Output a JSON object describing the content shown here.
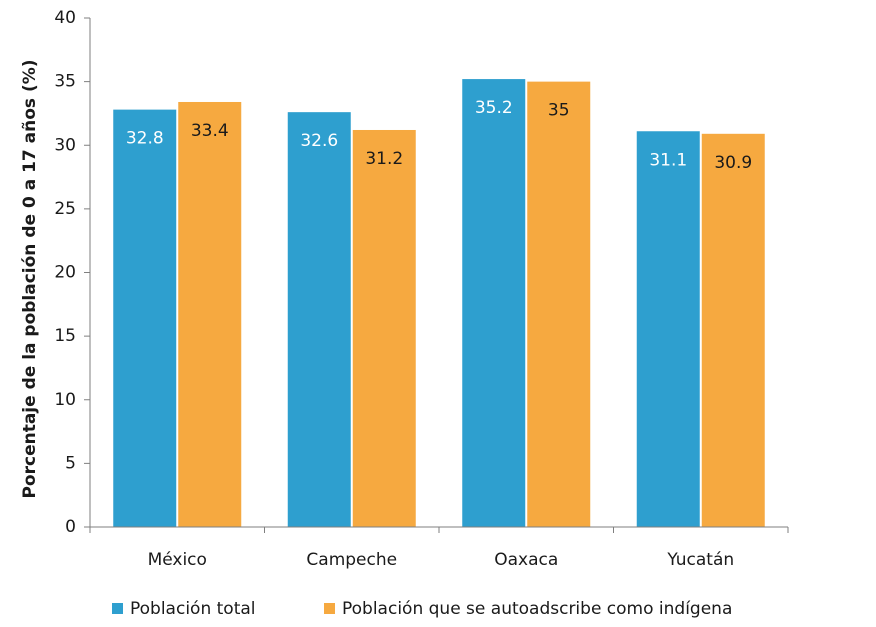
{
  "chart_data": {
    "type": "bar",
    "categories": [
      "México",
      "Campeche",
      "Oaxaca",
      "Yucatán"
    ],
    "series": [
      {
        "name": "Población total",
        "values": [
          32.8,
          32.6,
          35.2,
          31.1
        ],
        "labels": [
          "32.8",
          "32.6",
          "35.2",
          "31.1"
        ],
        "color": "#2E9FCF",
        "label_color": "#ffffff"
      },
      {
        "name": "Población que se autoadscribe como indígena",
        "values": [
          33.4,
          31.2,
          35,
          30.9
        ],
        "labels": [
          "33.4",
          "31.2",
          "35",
          "30.9"
        ],
        "color": "#F6A940",
        "label_color": "#1a1a1a"
      }
    ],
    "title": "",
    "xlabel": "",
    "ylabel": "Porcentaje  de la población de 0 a 17 años (%)",
    "ylim": [
      0,
      40
    ],
    "yticks": [
      0,
      5,
      10,
      15,
      20,
      25,
      30,
      35,
      40
    ],
    "grid": false,
    "legend": "bottom"
  }
}
